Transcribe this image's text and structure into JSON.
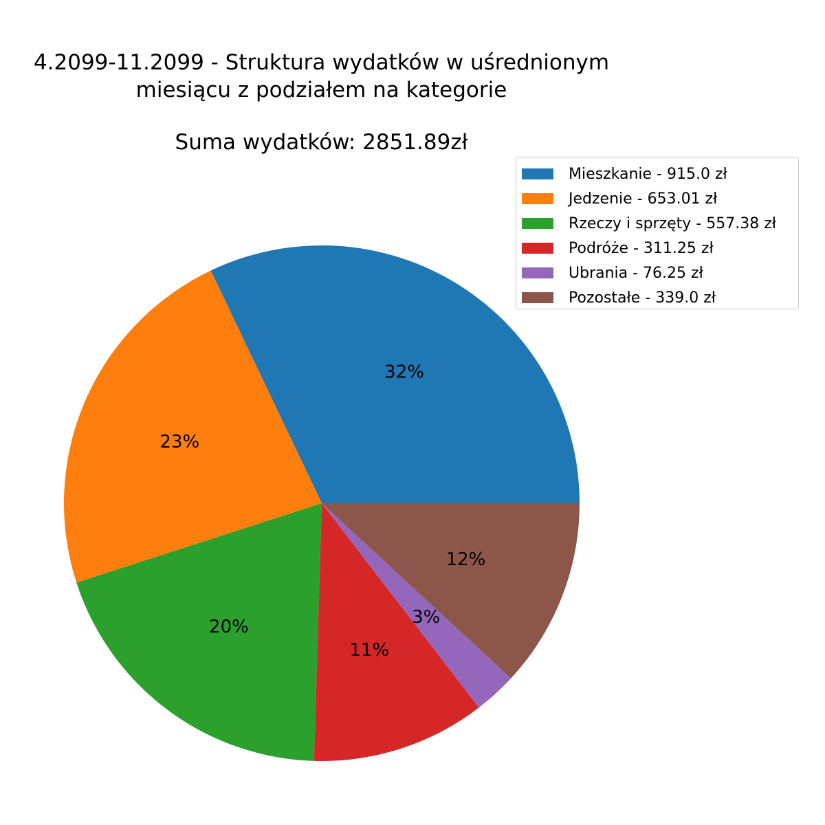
{
  "header": {
    "title_line1": "4.2099-11.2099 - Struktura wydatków w uśrednionym",
    "title_line2": "miesiącu z podziałem na kategorie",
    "subtitle": "Suma wydatków: 2851.89zł"
  },
  "legend": {
    "placement": "upper-right",
    "items": [
      {
        "label": "Mieszkanie - 915.0 zł",
        "color": "#1f77b4"
      },
      {
        "label": "Jedzenie - 653.01 zł",
        "color": "#ff7f0e"
      },
      {
        "label": "Rzeczy i sprzęty - 557.38 zł",
        "color": "#2ca02c"
      },
      {
        "label": "Podróże - 311.25 zł",
        "color": "#d62728"
      },
      {
        "label": "Ubrania - 76.25 zł",
        "color": "#9467bd"
      },
      {
        "label": "Pozostałe - 339.0 zł",
        "color": "#8c564b"
      }
    ]
  },
  "chart_data": {
    "type": "pie",
    "title": "4.2099-11.2099 - Struktura wydatków w uśrednionym miesiącu z podziałem na kategorie",
    "subtitle": "Suma wydatków: 2851.89zł",
    "total": 2851.89,
    "start_angle_deg": 0,
    "direction": "counterclockwise",
    "categories": [
      "Mieszkanie",
      "Jedzenie",
      "Rzeczy i sprzęty",
      "Podróże",
      "Ubrania",
      "Pozostałe"
    ],
    "values": [
      915.0,
      653.01,
      557.38,
      311.25,
      76.25,
      339.0
    ],
    "pct_labels": [
      "32%",
      "23%",
      "20%",
      "11%",
      "3%",
      "12%"
    ],
    "colors": [
      "#1f77b4",
      "#ff7f0e",
      "#2ca02c",
      "#d62728",
      "#9467bd",
      "#8c564b"
    ]
  }
}
